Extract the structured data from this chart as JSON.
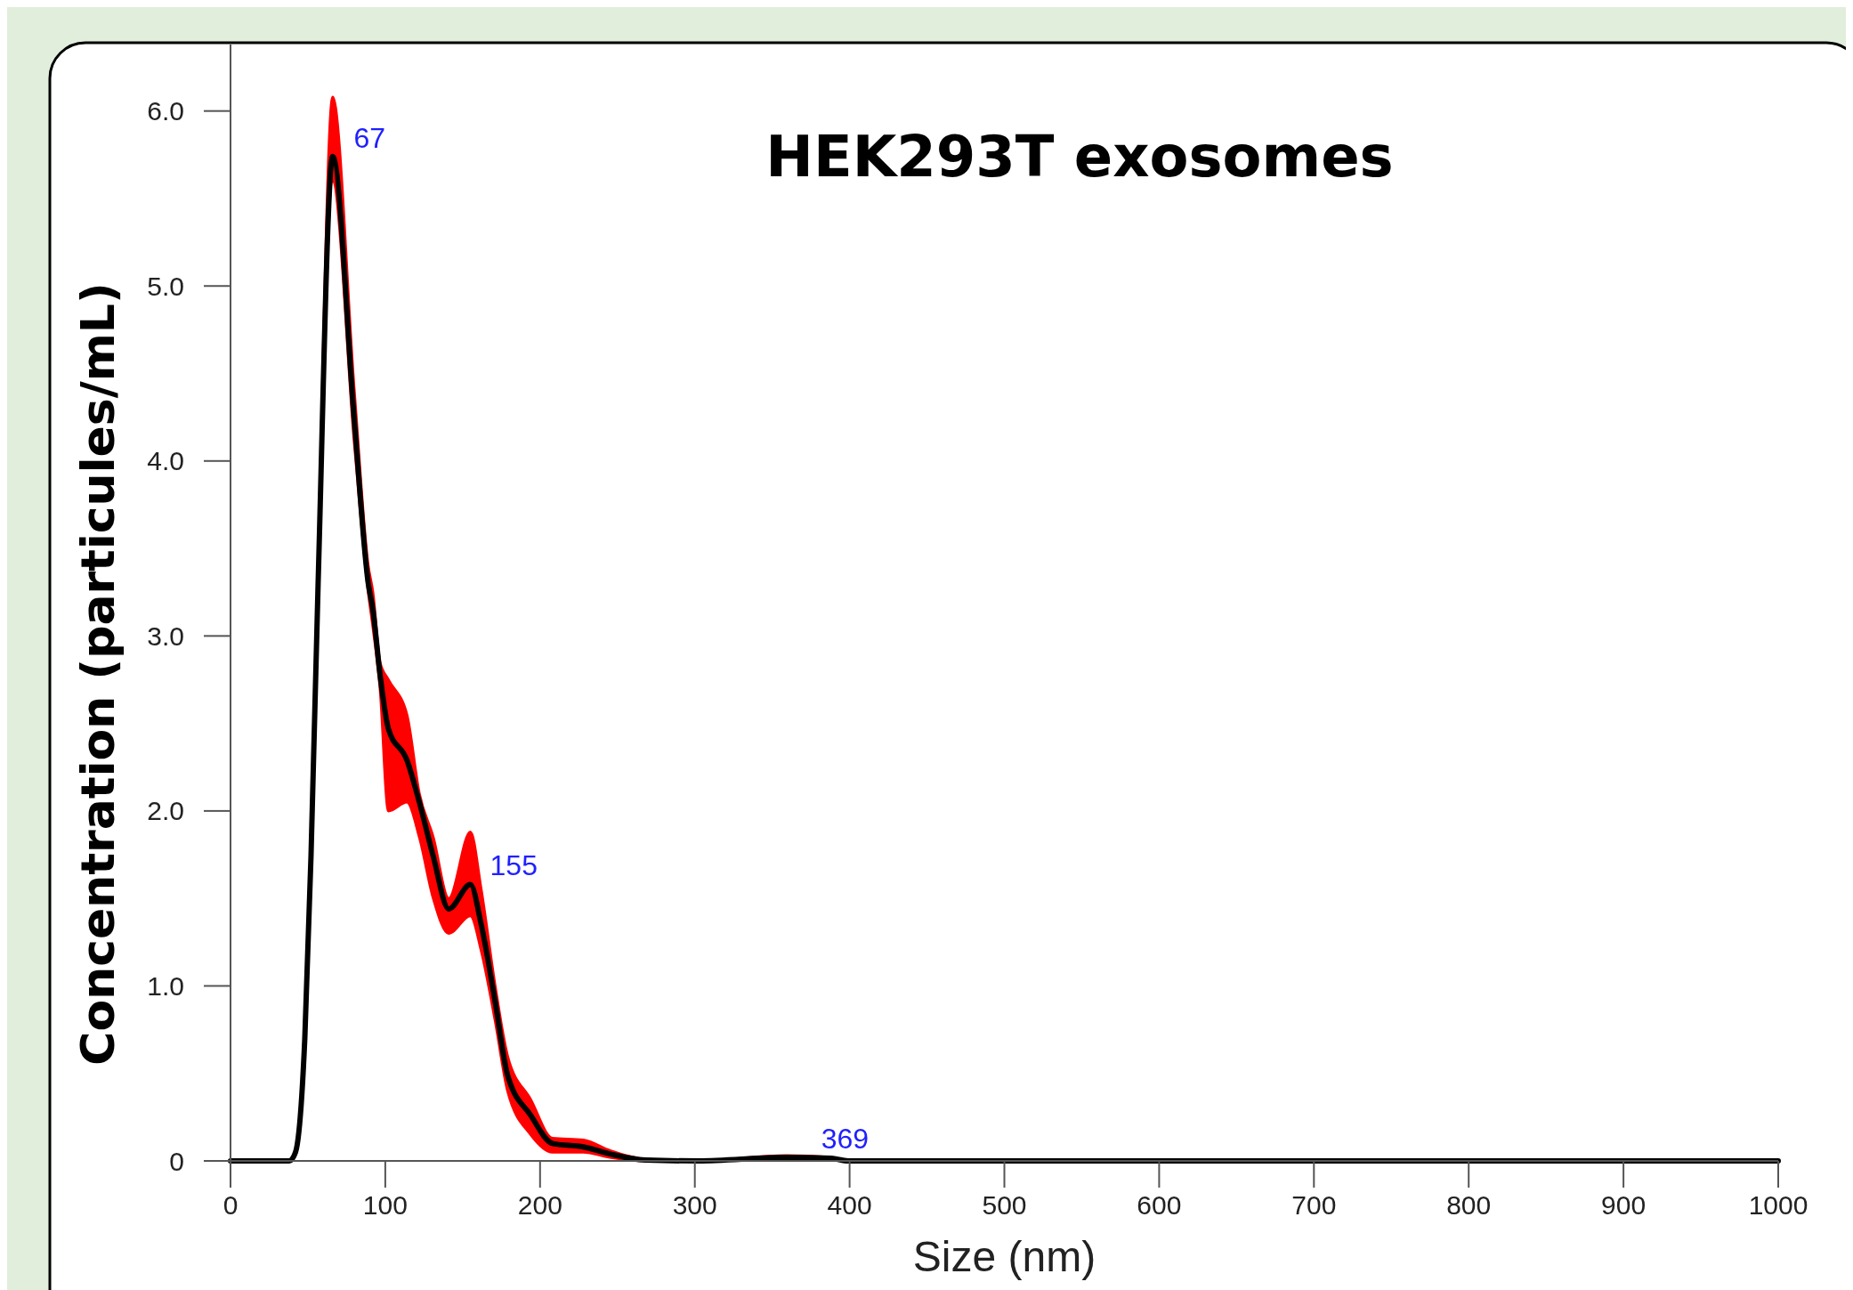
{
  "chart_data": {
    "type": "line",
    "title": "HEK293T exosomes",
    "xlabel": "Size (nm)",
    "ylabel": "Concentration (particules/mL)",
    "xlim": [
      0,
      1000
    ],
    "xticks": [
      0,
      100,
      200,
      300,
      400,
      500,
      600,
      700,
      800,
      900,
      1000
    ],
    "ylim": [
      0,
      6.38
    ],
    "yticks": [
      0,
      {
        "value": 1,
        "label": "1.0"
      },
      {
        "value": 2,
        "label": "2.0"
      },
      {
        "value": 3,
        "label": "3.0"
      },
      {
        "value": 4,
        "label": "4.0"
      },
      {
        "value": 5,
        "label": "5.0"
      },
      {
        "value": 6,
        "label": "6.0"
      }
    ],
    "grid": false,
    "series": [
      {
        "color": "#000000",
        "x": [
          0,
          38,
          42,
          48,
          52,
          56.6,
          66,
          80,
          89,
          92,
          96.6,
          102,
          114,
          122,
          131,
          141,
          155,
          162,
          171,
          179,
          194,
          208,
          228,
          245,
          268,
          302,
          359,
          388,
          399,
          500,
          1000
        ],
        "values": [
          0,
          0,
          0.05,
          0.7,
          1.74,
          3.3,
          5.74,
          4.23,
          3.3,
          3.15,
          2.78,
          2.47,
          2.29,
          2.05,
          1.74,
          1.44,
          1.58,
          1.35,
          0.91,
          0.49,
          0.26,
          0.1,
          0.08,
          0.04,
          0.005,
          0,
          0.02,
          0.015,
          0,
          0,
          0
        ],
        "lower": [
          0,
          0,
          0.05,
          0.68,
          1.7,
          3.25,
          5.6,
          4.1,
          3.25,
          3.05,
          2.7,
          2.0,
          2.05,
          1.85,
          1.5,
          1.3,
          1.4,
          1.2,
          0.8,
          0.4,
          0.15,
          0.05,
          0.05,
          0.02,
          0,
          0,
          0.01,
          0.01,
          0,
          0,
          0
        ],
        "upper": [
          0,
          0,
          0.05,
          0.72,
          1.78,
          3.4,
          6.08,
          4.4,
          3.4,
          3.25,
          2.85,
          2.75,
          2.55,
          2.1,
          1.85,
          1.5,
          1.88,
          1.55,
          1.0,
          0.6,
          0.35,
          0.13,
          0.12,
          0.06,
          0.01,
          0,
          0.03,
          0.02,
          0,
          0,
          0
        ]
      }
    ],
    "annotations": [
      {
        "text": "67",
        "x": 67,
        "y": 5.74
      },
      {
        "text": "155",
        "x": 155,
        "y": 1.58
      },
      {
        "text": "369",
        "x": 369,
        "y": 0.02
      }
    ]
  }
}
